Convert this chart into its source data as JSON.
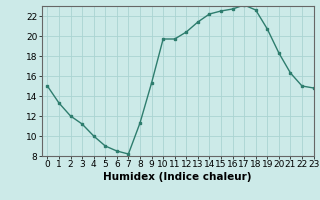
{
  "x": [
    0,
    1,
    2,
    3,
    4,
    5,
    6,
    7,
    8,
    9,
    10,
    11,
    12,
    13,
    14,
    15,
    16,
    17,
    18,
    19,
    20,
    21,
    22,
    23
  ],
  "y": [
    15,
    13.3,
    12,
    11.2,
    10,
    9,
    8.5,
    8.2,
    11.3,
    15.3,
    19.7,
    19.7,
    20.4,
    21.4,
    22.2,
    22.5,
    22.7,
    23.1,
    22.6,
    20.7,
    18.3,
    16.3,
    15,
    14.8
  ],
  "line_color": "#2e7d6e",
  "bg_color": "#cceae8",
  "grid_color": "#aad4d2",
  "xlabel": "Humidex (Indice chaleur)",
  "ylim": [
    8,
    23
  ],
  "xlim": [
    -0.5,
    23
  ],
  "yticks": [
    8,
    10,
    12,
    14,
    16,
    18,
    20,
    22
  ],
  "xticks": [
    0,
    1,
    2,
    3,
    4,
    5,
    6,
    7,
    8,
    9,
    10,
    11,
    12,
    13,
    14,
    15,
    16,
    17,
    18,
    19,
    20,
    21,
    22,
    23
  ],
  "label_fontsize": 7.5,
  "tick_fontsize": 6.5
}
